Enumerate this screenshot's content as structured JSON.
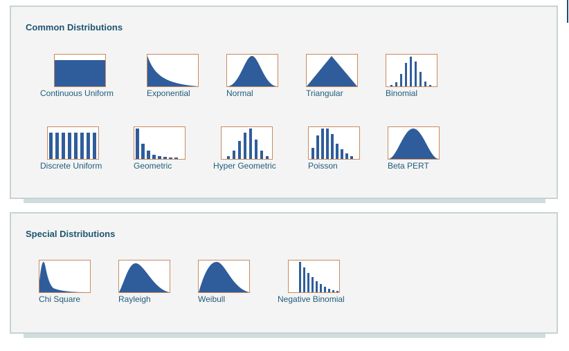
{
  "accent_color": "#2f5d9b",
  "border_color": "#c98a5c",
  "sections": {
    "common": {
      "title": "Common Distributions",
      "items": [
        {
          "label": "Continuous Uniform",
          "icon": "continuous-uniform"
        },
        {
          "label": "Exponential",
          "icon": "exponential"
        },
        {
          "label": "Normal",
          "icon": "normal"
        },
        {
          "label": "Triangular",
          "icon": "triangular"
        },
        {
          "label": "Binomial",
          "icon": "binomial"
        },
        {
          "label": "Discrete Uniform",
          "icon": "discrete-uniform"
        },
        {
          "label": "Geometric",
          "icon": "geometric"
        },
        {
          "label": "Hyper Geometric",
          "icon": "hyper-geometric"
        },
        {
          "label": "Poisson",
          "icon": "poisson"
        },
        {
          "label": "Beta PERT",
          "icon": "beta-pert"
        }
      ]
    },
    "special": {
      "title": "Special Distributions",
      "items": [
        {
          "label": "Chi Square",
          "icon": "chi-square"
        },
        {
          "label": "Rayleigh",
          "icon": "rayleigh"
        },
        {
          "label": "Weibull",
          "icon": "weibull"
        },
        {
          "label": "Negative Binomial",
          "icon": "negative-binomial"
        }
      ]
    }
  }
}
